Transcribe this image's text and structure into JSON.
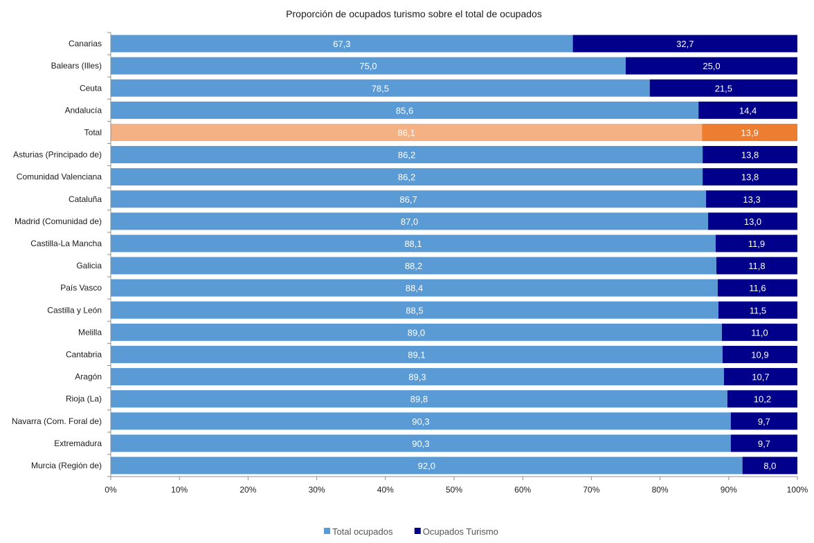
{
  "chart_data": {
    "type": "bar",
    "orientation": "horizontal",
    "stacked": "percent",
    "title": "Proporción de ocupados turismo sobre el total de ocupados",
    "categories": [
      "Canarias",
      "Balears (Illes)",
      "Ceuta",
      "Andalucía",
      "Total",
      "Asturias (Principado de)",
      "Comunidad Valenciana",
      "Cataluña",
      "Madrid (Comunidad de)",
      "Castilla-La Mancha",
      "Galicia",
      "País Vasco",
      "Castilla y León",
      "Melilla",
      "Cantabria",
      "Aragón",
      "Rioja (La)",
      "Navarra (Com. Foral de)",
      "Extremadura",
      "Murcia (Región de)"
    ],
    "series": [
      {
        "name": "Total ocupados",
        "color": "#5b9bd5",
        "values": [
          67.3,
          75.0,
          78.5,
          85.6,
          86.1,
          86.2,
          86.2,
          86.7,
          87.0,
          88.1,
          88.2,
          88.4,
          88.5,
          89.0,
          89.1,
          89.3,
          89.8,
          90.3,
          90.3,
          92.0
        ]
      },
      {
        "name": "Ocupados Turismo",
        "color": "#00008b",
        "values": [
          32.7,
          25.0,
          21.5,
          14.4,
          13.9,
          13.8,
          13.8,
          13.3,
          13.0,
          11.9,
          11.8,
          11.6,
          11.5,
          11.0,
          10.9,
          10.7,
          10.2,
          9.7,
          9.7,
          8.0
        ]
      }
    ],
    "value_labels": [
      [
        "67,3",
        "75,0",
        "78,5",
        "85,6",
        "86,1",
        "86,2",
        "86,2",
        "86,7",
        "87,0",
        "88,1",
        "88,2",
        "88,4",
        "88,5",
        "89,0",
        "89,1",
        "89,3",
        "89,8",
        "90,3",
        "90,3",
        "92,0"
      ],
      [
        "32,7",
        "25,0",
        "21,5",
        "14,4",
        "13,9",
        "13,8",
        "13,8",
        "13,3",
        "13,0",
        "11,9",
        "11,8",
        "11,6",
        "11,5",
        "11,0",
        "10,9",
        "10,7",
        "10,2",
        "9,7",
        "9,7",
        "8,0"
      ]
    ],
    "highlight": {
      "category": "Total",
      "colors": [
        "#f4b183",
        "#ed7d31"
      ]
    },
    "xaxis": {
      "min": 0,
      "max": 100,
      "ticks": [
        0,
        10,
        20,
        30,
        40,
        50,
        60,
        70,
        80,
        90,
        100
      ],
      "tick_labels": [
        "0%",
        "10%",
        "20%",
        "30%",
        "40%",
        "50%",
        "60%",
        "70%",
        "80%",
        "90%",
        "100%"
      ]
    },
    "xlabel": "",
    "ylabel": "",
    "grid": false,
    "legend_position": "bottom"
  }
}
